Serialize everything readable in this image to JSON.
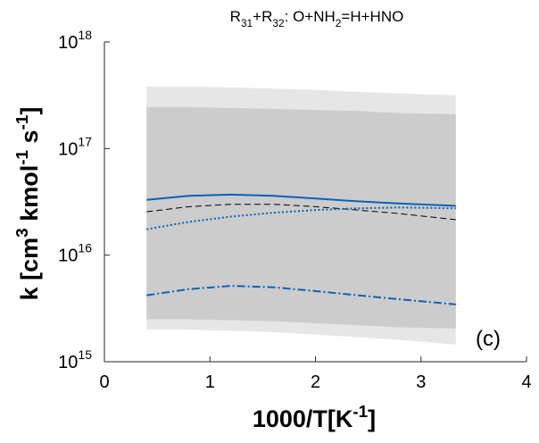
{
  "chart_data": {
    "type": "line",
    "title": [
      {
        "text": "R"
      },
      {
        "text": "31",
        "sub": true
      },
      {
        "text": "+R"
      },
      {
        "text": "32",
        "sub": true
      },
      {
        "text": ": O+NH"
      },
      {
        "text": "2",
        "sub": true
      },
      {
        "text": "=H+HNO"
      }
    ],
    "xlabel": [
      {
        "text": "1000/T[K"
      },
      {
        "text": "-1",
        "sup": true
      },
      {
        "text": "]"
      }
    ],
    "ylabel": [
      {
        "text": "k [cm"
      },
      {
        "text": "3",
        "sup": true
      },
      {
        "text": " kmol"
      },
      {
        "text": "-1",
        "sup": true
      },
      {
        "text": " s"
      },
      {
        "text": "-1",
        "sup": true
      },
      {
        "text": "]"
      }
    ],
    "annotation": "(c)",
    "xlim": [
      0,
      4
    ],
    "xticks": [
      0,
      1,
      2,
      3,
      4
    ],
    "ylim": [
      1000000000000000.0,
      1e+18
    ],
    "ylog": true,
    "yticks": [
      {
        "value": 1000000000000000.0,
        "label": "10",
        "exponent": "15"
      },
      {
        "value": 1e+16,
        "label": "10",
        "exponent": "16"
      },
      {
        "value": 1e+17,
        "label": "10",
        "exponent": "17"
      },
      {
        "value": 1e+18,
        "label": "10",
        "exponent": "18"
      }
    ],
    "x": [
      0.4,
      0.8,
      1.2,
      1.6,
      2.0,
      2.4,
      2.8,
      3.33
    ],
    "bands": [
      {
        "color": "#e6e6e6",
        "upper": [
          3.8e+17,
          3.8e+17,
          3.75e+17,
          3.65e+17,
          3.55e+17,
          3.4e+17,
          3.3e+17,
          3.15e+17
        ],
        "lower": [
          2000000000000000.0,
          2000000000000000.0,
          1950000000000000.0,
          1900000000000000.0,
          1800000000000000.0,
          1700000000000000.0,
          1600000000000000.0,
          1450000000000000.0
        ]
      },
      {
        "color": "#cccccc",
        "upper": [
          2.45e+17,
          2.45e+17,
          2.4e+17,
          2.35e+17,
          2.3e+17,
          2.25e+17,
          2.15e+17,
          2.1e+17
        ],
        "lower": [
          2500000000000000.0,
          2500000000000000.0,
          2450000000000000.0,
          2400000000000000.0,
          2300000000000000.0,
          2200000000000000.0,
          2100000000000000.0,
          2050000000000000.0
        ]
      }
    ],
    "series": [
      {
        "color": "#000000",
        "dash": "7 4",
        "width": 1,
        "values": [
          2.55e+16,
          2.85e+16,
          3e+16,
          3e+16,
          2.85e+16,
          2.65e+16,
          2.45e+16,
          2.15e+16
        ]
      },
      {
        "color": "#0b63b5",
        "dash": "2 2.5",
        "width": 2,
        "values": [
          1.75e+16,
          2.05e+16,
          2.3e+16,
          2.5e+16,
          2.65e+16,
          2.75e+16,
          2.8e+16,
          2.75e+16
        ]
      },
      {
        "color": "#0b63b5",
        "dash": "",
        "width": 2,
        "values": [
          3.3e+16,
          3.6e+16,
          3.7e+16,
          3.6e+16,
          3.4e+16,
          3.2e+16,
          3.05e+16,
          2.9e+16
        ]
      },
      {
        "color": "#0b63b5",
        "dash": "9 3 2 3",
        "width": 2,
        "values": [
          4200000000000000.0,
          4800000000000000.0,
          5150000000000000.0,
          5000000000000000.0,
          4600000000000000.0,
          4200000000000000.0,
          3850000000000000.0,
          3450000000000000.0
        ]
      }
    ]
  }
}
